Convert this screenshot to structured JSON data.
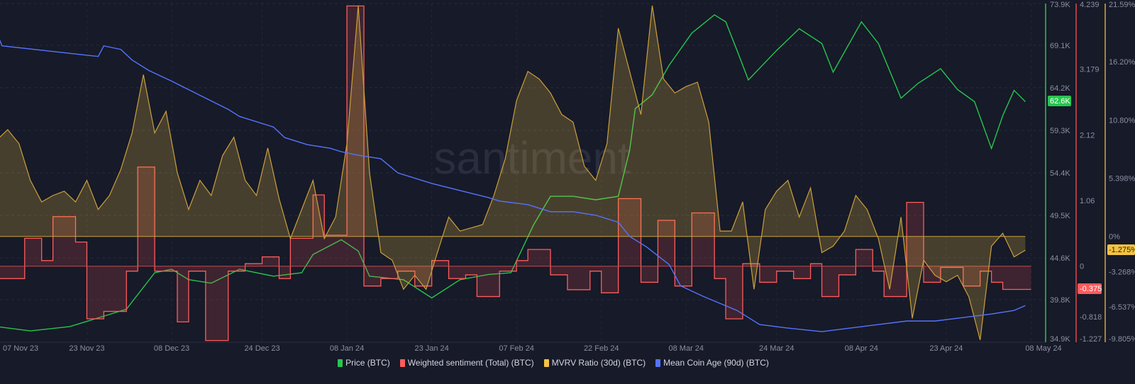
{
  "watermark": "santiment",
  "badges": {
    "price": "62.6K",
    "sentiment": "-0.375",
    "mvrv": "-1.275%"
  },
  "legend": [
    {
      "label": "Price (BTC)",
      "color": "#26c64f"
    },
    {
      "label": "Weighted sentiment (Total) (BTC)",
      "color": "#ff5b5b"
    },
    {
      "label": "MVRV Ratio (30d) (BTC)",
      "color": "#f5c343"
    },
    {
      "label": "Mean Coin Age (90d) (BTC)",
      "color": "#5474ff"
    }
  ],
  "chart_data": {
    "type": "line",
    "title": "",
    "grid": true,
    "legend_position": "bottom",
    "x_axis": {
      "type": "date",
      "range": [
        "2023-11-07",
        "2024-05-11"
      ],
      "ticks": [
        {
          "date": "2023-11-07",
          "label": "07 Nov 23"
        },
        {
          "date": "2023-11-23",
          "label": "23 Nov 23"
        },
        {
          "date": "2023-12-08",
          "label": "08 Dec 23"
        },
        {
          "date": "2023-12-24",
          "label": "24 Dec 23"
        },
        {
          "date": "2024-01-08",
          "label": "08 Jan 24"
        },
        {
          "date": "2024-01-23",
          "label": "23 Jan 24"
        },
        {
          "date": "2024-02-07",
          "label": "07 Feb 24"
        },
        {
          "date": "2024-02-22",
          "label": "22 Feb 24"
        },
        {
          "date": "2024-03-08",
          "label": "08 Mar 24"
        },
        {
          "date": "2024-03-24",
          "label": "24 Mar 24"
        },
        {
          "date": "2024-04-08",
          "label": "08 Apr 24"
        },
        {
          "date": "2024-04-23",
          "label": "23 Apr 24"
        },
        {
          "date": "2024-05-08",
          "label": "08 May 24"
        }
      ]
    },
    "y_axes": {
      "price": {
        "range": [
          34.9,
          73.9
        ],
        "unit": "K",
        "color": "#26c64f",
        "ticks": [
          {
            "v": 34.9,
            "label": "34.9K"
          },
          {
            "v": 39.8,
            "label": "39.8K"
          },
          {
            "v": 44.6,
            "label": "44.6K"
          },
          {
            "v": 49.5,
            "label": "49.5K"
          },
          {
            "v": 54.4,
            "label": "54.4K"
          },
          {
            "v": 59.3,
            "label": "59.3K"
          },
          {
            "v": 64.2,
            "label": "64.2K"
          },
          {
            "v": 69.1,
            "label": "69.1K"
          },
          {
            "v": 73.9,
            "label": "73.9K"
          }
        ]
      },
      "sentiment": {
        "range": [
          -1.227,
          4.239
        ],
        "color": "#e0484d",
        "ticks": [
          {
            "v": -1.227,
            "label": "-1.227"
          },
          {
            "v": -0.818,
            "label": "-0.818"
          },
          {
            "v": 0,
            "label": "0"
          },
          {
            "v": 1.06,
            "label": "1.06"
          },
          {
            "v": 2.12,
            "label": "2.12"
          },
          {
            "v": 3.179,
            "label": "3.179"
          },
          {
            "v": 4.239,
            "label": "4.239"
          }
        ]
      },
      "mvrv": {
        "range": [
          -9.805,
          21.59
        ],
        "unit": "%",
        "color": "#d9a53a",
        "ticks": [
          {
            "v": -9.805,
            "label": "-9.805%"
          },
          {
            "v": -6.537,
            "label": "-6.537%"
          },
          {
            "v": -3.268,
            "label": "-3.268%"
          },
          {
            "v": 0,
            "label": "0%"
          },
          {
            "v": 5.398,
            "label": "5.398%"
          },
          {
            "v": 10.8,
            "label": "10.80%"
          },
          {
            "v": 16.2,
            "label": "16.20%"
          },
          {
            "v": 21.59,
            "label": "21.59%"
          }
        ]
      },
      "age": {
        "range": [
          0,
          48
        ],
        "hidden": true
      }
    },
    "series": [
      {
        "name": "Price (BTC)",
        "axis": "price",
        "style": "line",
        "color": "#26c64f",
        "points": [
          [
            "2023-11-07",
            36.7
          ],
          [
            "2023-11-13",
            36.2
          ],
          [
            "2023-11-20",
            36.7
          ],
          [
            "2023-11-24",
            37.5
          ],
          [
            "2023-11-30",
            38.7
          ],
          [
            "2023-12-05",
            42.9
          ],
          [
            "2023-12-08",
            43.3
          ],
          [
            "2023-12-11",
            42.1
          ],
          [
            "2023-12-15",
            41.7
          ],
          [
            "2023-12-20",
            43.3
          ],
          [
            "2023-12-26",
            42.5
          ],
          [
            "2023-12-31",
            42.9
          ],
          [
            "2024-01-02",
            45.0
          ],
          [
            "2024-01-07",
            46.7
          ],
          [
            "2024-01-10",
            45.4
          ],
          [
            "2024-01-12",
            42.5
          ],
          [
            "2024-01-18",
            42.1
          ],
          [
            "2024-01-23",
            40.0
          ],
          [
            "2024-01-28",
            42.1
          ],
          [
            "2024-02-02",
            42.7
          ],
          [
            "2024-02-06",
            42.9
          ],
          [
            "2024-02-10",
            48.4
          ],
          [
            "2024-02-13",
            51.7
          ],
          [
            "2024-02-17",
            51.7
          ],
          [
            "2024-02-21",
            51.3
          ],
          [
            "2024-02-25",
            51.7
          ],
          [
            "2024-02-27",
            57.0
          ],
          [
            "2024-02-28",
            61.8
          ],
          [
            "2024-03-02",
            63.4
          ],
          [
            "2024-03-05",
            66.8
          ],
          [
            "2024-03-09",
            70.5
          ],
          [
            "2024-03-13",
            72.6
          ],
          [
            "2024-03-15",
            71.8
          ],
          [
            "2024-03-17",
            68.5
          ],
          [
            "2024-03-19",
            65.1
          ],
          [
            "2024-03-24",
            68.5
          ],
          [
            "2024-03-28",
            71.0
          ],
          [
            "2024-04-01",
            69.3
          ],
          [
            "2024-04-03",
            66.0
          ],
          [
            "2024-04-08",
            71.8
          ],
          [
            "2024-04-11",
            69.3
          ],
          [
            "2024-04-15",
            63.0
          ],
          [
            "2024-04-18",
            64.7
          ],
          [
            "2024-04-22",
            66.4
          ],
          [
            "2024-04-25",
            64.0
          ],
          [
            "2024-04-28",
            62.6
          ],
          [
            "2024-05-01",
            57.2
          ],
          [
            "2024-05-03",
            61.0
          ],
          [
            "2024-05-05",
            63.9
          ],
          [
            "2024-05-07",
            62.6
          ]
        ]
      },
      {
        "name": "Weighted sentiment (Total) (BTC)",
        "axis": "sentiment",
        "style": "step-area",
        "color": "#ff5b5b",
        "end": "2024-05-08",
        "points": [
          [
            "2023-11-07",
            -0.2
          ],
          [
            "2023-11-12",
            0.45
          ],
          [
            "2023-11-15",
            0.09
          ],
          [
            "2023-11-17",
            0.8
          ],
          [
            "2023-11-21",
            0.39
          ],
          [
            "2023-11-23",
            -0.85
          ],
          [
            "2023-11-26",
            -0.73
          ],
          [
            "2023-11-30",
            -0.08
          ],
          [
            "2023-12-02",
            1.6
          ],
          [
            "2023-12-05",
            -0.08
          ],
          [
            "2023-12-09",
            -0.9
          ],
          [
            "2023-12-11",
            -0.08
          ],
          [
            "2023-12-14",
            -1.2
          ],
          [
            "2023-12-18",
            -0.08
          ],
          [
            "2023-12-21",
            0.04
          ],
          [
            "2023-12-24",
            0.15
          ],
          [
            "2023-12-27",
            -0.2
          ],
          [
            "2023-12-29",
            0.45
          ],
          [
            "2024-01-02",
            1.15
          ],
          [
            "2024-01-04",
            0.5
          ],
          [
            "2024-01-08",
            4.2
          ],
          [
            "2024-01-11",
            -0.32
          ],
          [
            "2024-01-14",
            -0.2
          ],
          [
            "2024-01-17",
            -0.08
          ],
          [
            "2024-01-20",
            -0.32
          ],
          [
            "2024-01-23",
            0.09
          ],
          [
            "2024-01-26",
            -0.2
          ],
          [
            "2024-01-29",
            -0.14
          ],
          [
            "2024-01-31",
            -0.49
          ],
          [
            "2024-02-04",
            -0.08
          ],
          [
            "2024-02-07",
            0.09
          ],
          [
            "2024-02-09",
            0.27
          ],
          [
            "2024-02-13",
            -0.14
          ],
          [
            "2024-02-16",
            -0.38
          ],
          [
            "2024-02-20",
            -0.08
          ],
          [
            "2024-02-22",
            -0.43
          ],
          [
            "2024-02-25",
            1.09
          ],
          [
            "2024-02-29",
            -0.26
          ],
          [
            "2024-03-03",
            0.74
          ],
          [
            "2024-03-06",
            -0.32
          ],
          [
            "2024-03-09",
            0.86
          ],
          [
            "2024-03-13",
            -0.2
          ],
          [
            "2024-03-15",
            -0.85
          ],
          [
            "2024-03-18",
            0.04
          ],
          [
            "2024-03-21",
            -0.26
          ],
          [
            "2024-03-24",
            -0.08
          ],
          [
            "2024-03-27",
            -0.2
          ],
          [
            "2024-03-30",
            0.04
          ],
          [
            "2024-04-01",
            -0.49
          ],
          [
            "2024-04-04",
            -0.14
          ],
          [
            "2024-04-07",
            0.27
          ],
          [
            "2024-04-10",
            -0.08
          ],
          [
            "2024-04-12",
            -0.49
          ],
          [
            "2024-04-16",
            1.03
          ],
          [
            "2024-04-19",
            -0.26
          ],
          [
            "2024-04-22",
            -0.02
          ],
          [
            "2024-04-26",
            -0.32
          ],
          [
            "2024-04-29",
            -0.08
          ],
          [
            "2024-05-01",
            -0.26
          ],
          [
            "2024-05-03",
            -0.375
          ]
        ]
      },
      {
        "name": "MVRV Ratio (30d) (BTC)",
        "axis": "mvrv",
        "style": "area",
        "color": "#f5c343",
        "dates": [
          "2023-11-07",
          "2023-11-09",
          "2023-11-11",
          "2023-11-13",
          "2023-11-15",
          "2023-11-17",
          "2023-11-19",
          "2023-11-21",
          "2023-11-23",
          "2023-11-25",
          "2023-11-27",
          "2023-11-29",
          "2023-12-01",
          "2023-12-03",
          "2023-12-05",
          "2023-12-07",
          "2023-12-09",
          "2023-12-11",
          "2023-12-13",
          "2023-12-15",
          "2023-12-17",
          "2023-12-19",
          "2023-12-21",
          "2023-12-23",
          "2023-12-25",
          "2023-12-27",
          "2023-12-29",
          "2023-12-31",
          "2024-01-02",
          "2024-01-04",
          "2024-01-06",
          "2024-01-08",
          "2024-01-10",
          "2024-01-12",
          "2024-01-14",
          "2024-01-16",
          "2024-01-18",
          "2024-01-20",
          "2024-01-22",
          "2024-01-24",
          "2024-01-26",
          "2024-01-28",
          "2024-01-30",
          "2024-02-01",
          "2024-02-03",
          "2024-02-05",
          "2024-02-07",
          "2024-02-09",
          "2024-02-11",
          "2024-02-13",
          "2024-02-15",
          "2024-02-17",
          "2024-02-19",
          "2024-02-21",
          "2024-02-23",
          "2024-02-25",
          "2024-02-27",
          "2024-02-29",
          "2024-03-02",
          "2024-03-04",
          "2024-03-06",
          "2024-03-08",
          "2024-03-10",
          "2024-03-12",
          "2024-03-14",
          "2024-03-16",
          "2024-03-18",
          "2024-03-20",
          "2024-03-22",
          "2024-03-24",
          "2024-03-26",
          "2024-03-28",
          "2024-03-30",
          "2024-04-01",
          "2024-04-03",
          "2024-04-05",
          "2024-04-07",
          "2024-04-09",
          "2024-04-11",
          "2024-04-13",
          "2024-04-15",
          "2024-04-17",
          "2024-04-19",
          "2024-04-21",
          "2024-04-23",
          "2024-04-25",
          "2024-04-27",
          "2024-04-29",
          "2024-05-01",
          "2024-05-03",
          "2024-05-05",
          "2024-05-07"
        ],
        "values": [
          8.9,
          9.9,
          8.6,
          5.2,
          3.2,
          3.8,
          4.2,
          3.2,
          5.2,
          2.5,
          3.8,
          6.2,
          9.6,
          15.0,
          9.6,
          11.6,
          5.9,
          2.5,
          5.2,
          3.8,
          7.5,
          9.2,
          5.2,
          3.8,
          8.2,
          3.5,
          -0.2,
          2.5,
          5.2,
          -0.2,
          1.8,
          8.6,
          21.4,
          5.9,
          -1.5,
          -2.2,
          -4.9,
          -3.6,
          -4.9,
          -1.5,
          1.8,
          0.5,
          0.8,
          1.1,
          3.8,
          7.2,
          12.6,
          15.3,
          14.6,
          13.3,
          11.3,
          10.6,
          6.5,
          5.2,
          8.6,
          19.3,
          15.3,
          11.3,
          21.4,
          14.6,
          13.3,
          13.9,
          14.3,
          10.6,
          0.5,
          0.5,
          3.2,
          -4.9,
          2.5,
          4.2,
          5.2,
          1.8,
          4.5,
          -1.5,
          -0.9,
          0.5,
          3.8,
          2.5,
          -0.2,
          -4.9,
          1.8,
          -7.6,
          -2.2,
          -3.6,
          -4.2,
          -3.6,
          -5.6,
          -9.6,
          -0.9,
          0.3,
          -1.9,
          -1.275
        ]
      },
      {
        "name": "Mean Coin Age (90d) (BTC)",
        "axis": "age",
        "style": "line",
        "color": "#5474ff",
        "points": [
          [
            "2023-11-07",
            44
          ],
          [
            "2023-11-08",
            42
          ],
          [
            "2023-11-25",
            40.5
          ],
          [
            "2023-11-26",
            42
          ],
          [
            "2023-11-29",
            41.5
          ],
          [
            "2023-12-01",
            40
          ],
          [
            "2023-12-04",
            38.5
          ],
          [
            "2023-12-08",
            37
          ],
          [
            "2023-12-13",
            35
          ],
          [
            "2023-12-18",
            33
          ],
          [
            "2023-12-20",
            32
          ],
          [
            "2023-12-26",
            30.5
          ],
          [
            "2023-12-28",
            29
          ],
          [
            "2024-01-01",
            28
          ],
          [
            "2024-01-05",
            27.5
          ],
          [
            "2024-01-07",
            27
          ],
          [
            "2024-01-10",
            26.5
          ],
          [
            "2024-01-14",
            26
          ],
          [
            "2024-01-17",
            24
          ],
          [
            "2024-01-23",
            22.5
          ],
          [
            "2024-01-28",
            21.5
          ],
          [
            "2024-02-02",
            20.5
          ],
          [
            "2024-02-04",
            20
          ],
          [
            "2024-02-09",
            19.5
          ],
          [
            "2024-02-13",
            18.5
          ],
          [
            "2024-02-17",
            18.5
          ],
          [
            "2024-02-21",
            18
          ],
          [
            "2024-02-25",
            17
          ],
          [
            "2024-02-27",
            15
          ],
          [
            "2024-03-01",
            13.5
          ],
          [
            "2024-03-05",
            11
          ],
          [
            "2024-03-07",
            8
          ],
          [
            "2024-03-11",
            6.5
          ],
          [
            "2024-03-14",
            5.5
          ],
          [
            "2024-03-17",
            4.5
          ],
          [
            "2024-03-21",
            2.5
          ],
          [
            "2024-03-26",
            2
          ],
          [
            "2024-04-01",
            1.5
          ],
          [
            "2024-04-06",
            2
          ],
          [
            "2024-04-11",
            2.5
          ],
          [
            "2024-04-16",
            3
          ],
          [
            "2024-04-21",
            3
          ],
          [
            "2024-04-26",
            3.5
          ],
          [
            "2024-05-01",
            4
          ],
          [
            "2024-05-05",
            4.5
          ],
          [
            "2024-05-07",
            5.2
          ]
        ]
      }
    ]
  }
}
